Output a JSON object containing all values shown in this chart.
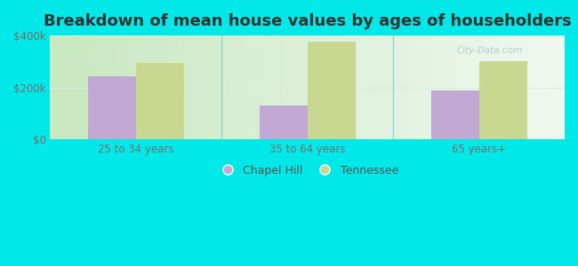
{
  "title": "Breakdown of mean house values by ages of householders",
  "categories": [
    "25 to 34 years",
    "35 to 64 years",
    "65 years+"
  ],
  "chapel_hill": [
    245000,
    130000,
    190000
  ],
  "tennessee": [
    295000,
    375000,
    300000
  ],
  "chapel_hill_color": "#c4a8d4",
  "tennessee_color": "#c8d890",
  "background_color": "#00e8e8",
  "plot_bg_gradient_left": "#c8e8c0",
  "plot_bg_gradient_right": "#f0f8f0",
  "ylim": [
    0,
    400000
  ],
  "yticks": [
    0,
    200000,
    400000
  ],
  "ytick_labels": [
    "$0",
    "$200k",
    "$400k"
  ],
  "legend_labels": [
    "Chapel Hill",
    "Tennessee"
  ],
  "bar_width": 0.28,
  "title_fontsize": 13,
  "tick_fontsize": 8.5,
  "legend_fontsize": 9,
  "separator_color": "#90d8d8",
  "grid_color": "#d8eed8"
}
